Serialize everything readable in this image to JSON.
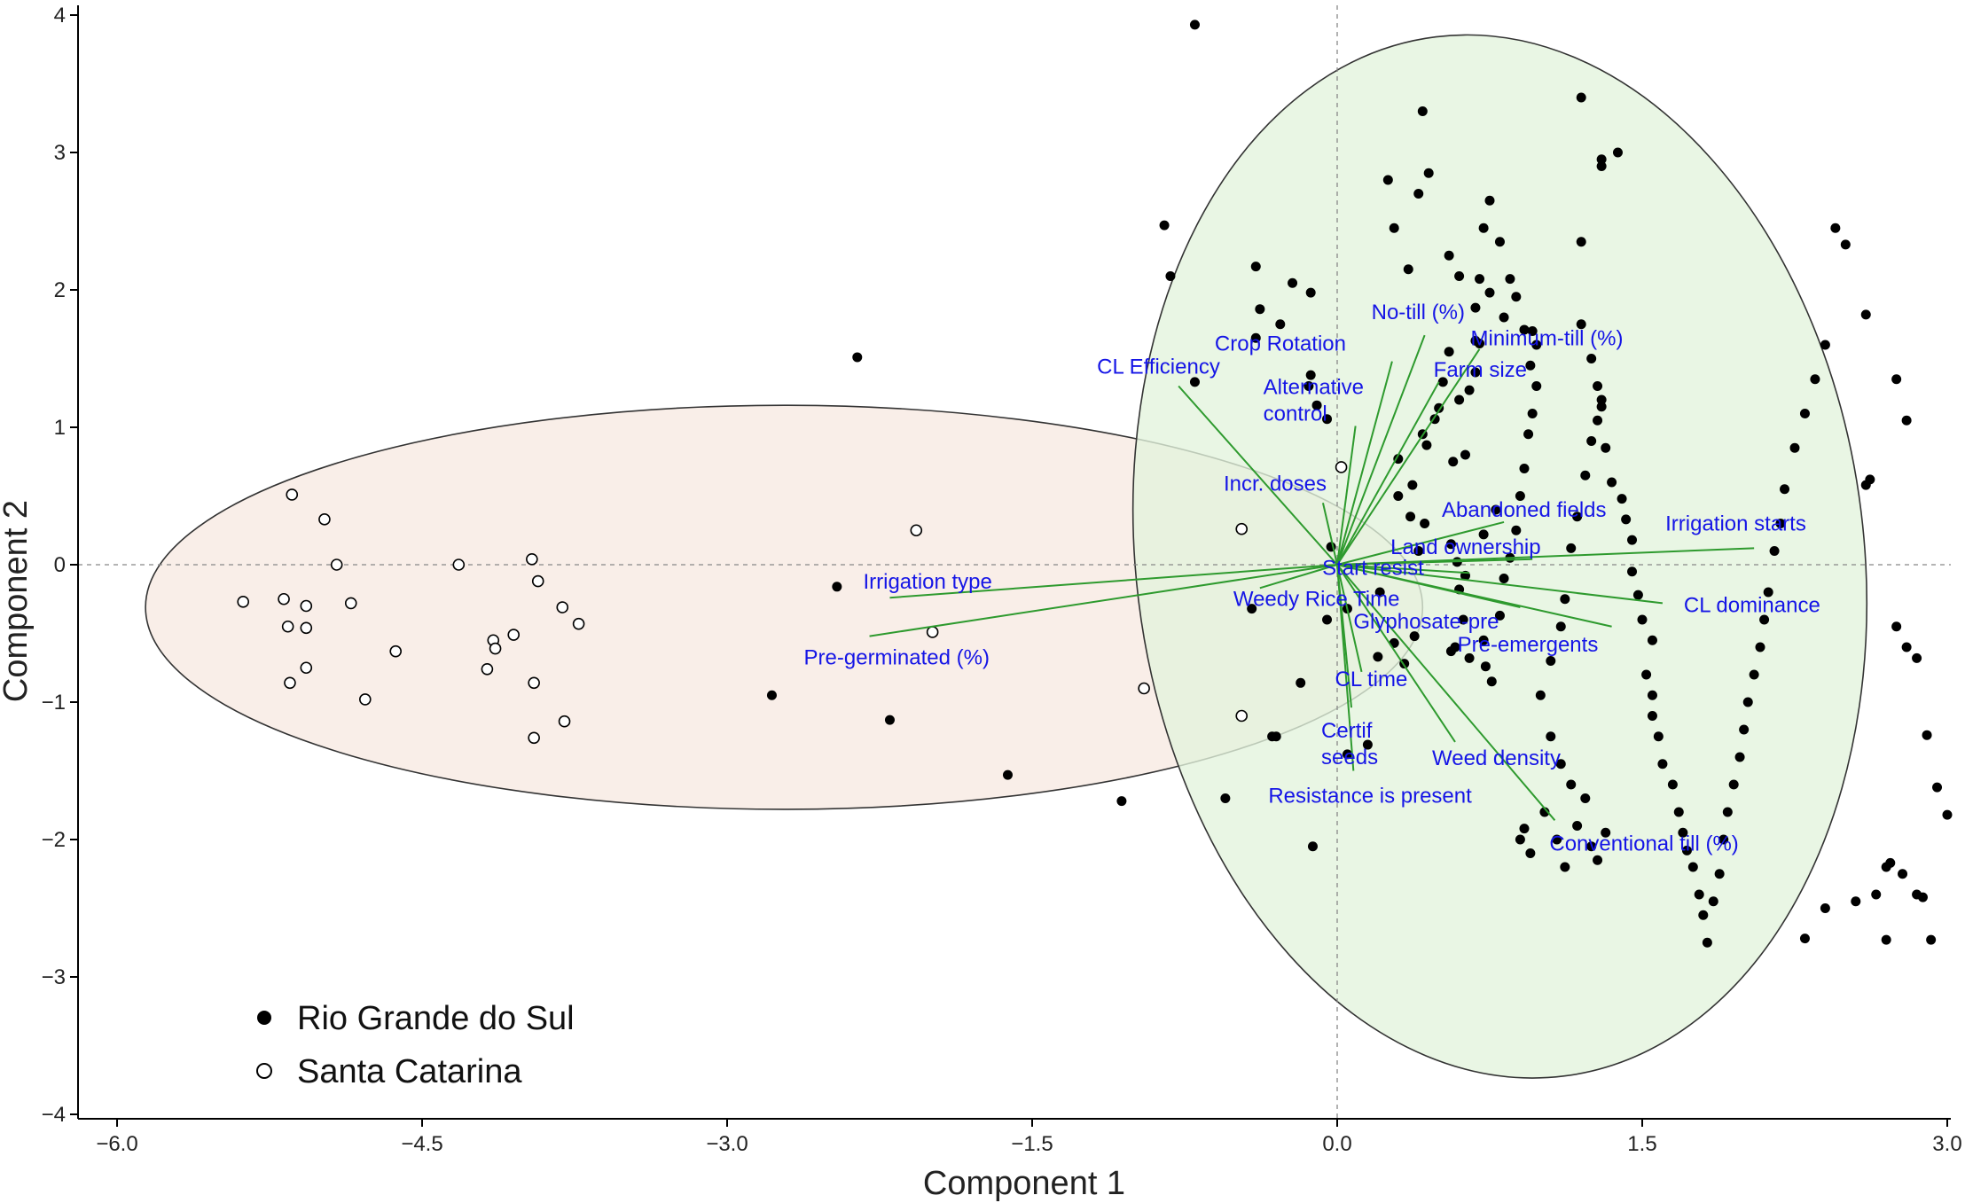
{
  "chart_data": {
    "type": "scatter",
    "title": "",
    "xlabel": "Component 1",
    "ylabel": "Component 2",
    "xlim": [
      -6.15,
      3.05
    ],
    "ylim": [
      -4.1,
      4.1
    ],
    "xticks": [
      -6.0,
      -4.5,
      -3.0,
      -1.5,
      0.0,
      1.5,
      3.0
    ],
    "xtick_labels": [
      "−6.0",
      "−4.5",
      "−3.0",
      "−1.5",
      "0.0",
      "1.5",
      "3.0"
    ],
    "yticks": [
      -4,
      -3,
      -2,
      -1,
      0,
      1,
      2,
      3,
      4
    ],
    "ytick_labels": [
      "−4",
      "−3",
      "−2",
      "−1",
      "0",
      "1",
      "2",
      "3",
      "4"
    ],
    "grid": false,
    "reference_lines": [
      {
        "axis": "x",
        "value": 0,
        "style": "dashed"
      },
      {
        "axis": "y",
        "value": 0,
        "style": "dashed"
      }
    ],
    "legend": {
      "position": "bottom-left"
    },
    "series": [
      {
        "name": "Rio Grande do Sul",
        "marker": "filled-circle",
        "color": "#000000",
        "points": [
          [
            -0.7,
            3.93
          ],
          [
            -0.85,
            2.47
          ],
          [
            -0.82,
            2.1
          ],
          [
            -0.7,
            1.33
          ],
          [
            -2.36,
            1.51
          ],
          [
            -2.46,
            -0.16
          ],
          [
            -2.78,
            -0.95
          ],
          [
            -2.2,
            -1.13
          ],
          [
            -1.62,
            -1.53
          ],
          [
            -1.06,
            -1.72
          ],
          [
            -0.55,
            -1.7
          ],
          [
            -0.32,
            -1.25
          ],
          [
            -0.12,
            -2.05
          ],
          [
            -0.42,
            -0.32
          ],
          [
            -0.3,
            -1.25
          ],
          [
            -0.18,
            -0.86
          ],
          [
            -0.4,
            2.17
          ],
          [
            -0.38,
            1.86
          ],
          [
            -0.4,
            1.65
          ],
          [
            -0.28,
            1.75
          ],
          [
            -0.22,
            2.05
          ],
          [
            -0.13,
            1.98
          ],
          [
            -0.13,
            1.38
          ],
          [
            -0.14,
            1.3
          ],
          [
            -0.1,
            1.16
          ],
          [
            -0.05,
            1.06
          ],
          [
            -0.03,
            0.13
          ],
          [
            -0.05,
            -0.4
          ],
          [
            0.05,
            -0.32
          ],
          [
            0.05,
            -1.38
          ],
          [
            0.15,
            -1.31
          ],
          [
            0.2,
            -0.67
          ],
          [
            0.21,
            -0.2
          ],
          [
            0.28,
            -0.57
          ],
          [
            0.33,
            -0.72
          ],
          [
            0.38,
            -0.52
          ],
          [
            0.4,
            0.1
          ],
          [
            0.43,
            0.3
          ],
          [
            0.36,
            0.35
          ],
          [
            0.3,
            0.77
          ],
          [
            0.3,
            0.5
          ],
          [
            0.37,
            0.58
          ],
          [
            0.42,
            0.95
          ],
          [
            0.44,
            0.87
          ],
          [
            0.48,
            1.06
          ],
          [
            0.5,
            1.14
          ],
          [
            0.52,
            1.33
          ],
          [
            0.55,
            1.55
          ],
          [
            0.57,
            0.75
          ],
          [
            0.63,
            0.8
          ],
          [
            0.6,
            1.2
          ],
          [
            0.65,
            1.27
          ],
          [
            0.68,
            1.4
          ],
          [
            0.7,
            1.61
          ],
          [
            0.56,
            0.15
          ],
          [
            0.59,
            0.02
          ],
          [
            0.63,
            -0.08
          ],
          [
            0.6,
            -0.18
          ],
          [
            0.62,
            -0.4
          ],
          [
            0.58,
            -0.6
          ],
          [
            0.56,
            -0.63
          ],
          [
            0.65,
            -0.68
          ],
          [
            0.72,
            -0.55
          ],
          [
            0.73,
            -0.74
          ],
          [
            0.76,
            -0.85
          ],
          [
            0.8,
            -0.37
          ],
          [
            0.82,
            -0.1
          ],
          [
            0.85,
            0.05
          ],
          [
            0.88,
            0.25
          ],
          [
            0.9,
            0.5
          ],
          [
            0.92,
            0.7
          ],
          [
            0.94,
            0.95
          ],
          [
            0.96,
            1.1
          ],
          [
            0.98,
            1.3
          ],
          [
            0.95,
            1.45
          ],
          [
            0.78,
            0.4
          ],
          [
            0.72,
            0.22
          ],
          [
            0.68,
            1.63
          ],
          [
            0.7,
            2.08
          ],
          [
            0.72,
            2.45
          ],
          [
            0.75,
            2.65
          ],
          [
            0.8,
            2.35
          ],
          [
            0.68,
            1.87
          ],
          [
            0.75,
            1.98
          ],
          [
            0.82,
            1.8
          ],
          [
            0.85,
            2.08
          ],
          [
            0.88,
            1.95
          ],
          [
            0.92,
            1.71
          ],
          [
            0.98,
            1.6
          ],
          [
            0.96,
            1.7
          ],
          [
            0.25,
            2.8
          ],
          [
            0.35,
            2.15
          ],
          [
            0.28,
            2.45
          ],
          [
            0.4,
            2.7
          ],
          [
            0.42,
            3.3
          ],
          [
            0.45,
            2.85
          ],
          [
            0.55,
            2.25
          ],
          [
            0.6,
            2.1
          ],
          [
            1.2,
            3.4
          ],
          [
            1.3,
            2.95
          ],
          [
            1.3,
            2.9
          ],
          [
            1.38,
            3.0
          ],
          [
            1.2,
            2.35
          ],
          [
            1.2,
            1.75
          ],
          [
            1.25,
            1.5
          ],
          [
            1.28,
            1.3
          ],
          [
            1.3,
            1.15
          ],
          [
            1.32,
            0.85
          ],
          [
            1.35,
            0.6
          ],
          [
            1.4,
            0.48
          ],
          [
            1.42,
            0.33
          ],
          [
            1.45,
            0.18
          ],
          [
            1.45,
            -0.05
          ],
          [
            1.48,
            -0.22
          ],
          [
            1.5,
            -0.4
          ],
          [
            1.55,
            -0.55
          ],
          [
            1.52,
            -0.8
          ],
          [
            1.55,
            -0.95
          ],
          [
            1.55,
            -1.1
          ],
          [
            1.58,
            -1.25
          ],
          [
            1.6,
            -1.45
          ],
          [
            1.65,
            -1.6
          ],
          [
            1.68,
            -1.8
          ],
          [
            1.7,
            -1.95
          ],
          [
            1.72,
            -2.08
          ],
          [
            1.75,
            -2.2
          ],
          [
            1.78,
            -2.4
          ],
          [
            1.8,
            -2.55
          ],
          [
            1.82,
            -2.75
          ],
          [
            1.85,
            -2.45
          ],
          [
            1.88,
            -2.25
          ],
          [
            1.9,
            -2.0
          ],
          [
            1.92,
            -1.8
          ],
          [
            1.95,
            -1.6
          ],
          [
            1.98,
            -1.4
          ],
          [
            2.0,
            -1.2
          ],
          [
            2.02,
            -1.0
          ],
          [
            2.05,
            -0.8
          ],
          [
            2.08,
            -0.6
          ],
          [
            2.1,
            -0.4
          ],
          [
            2.12,
            -0.2
          ],
          [
            2.15,
            0.1
          ],
          [
            2.18,
            0.3
          ],
          [
            2.2,
            0.55
          ],
          [
            2.25,
            0.85
          ],
          [
            2.3,
            1.1
          ],
          [
            2.35,
            1.35
          ],
          [
            2.4,
            1.6
          ],
          [
            2.45,
            2.45
          ],
          [
            2.5,
            2.33
          ],
          [
            2.6,
            0.58
          ],
          [
            2.62,
            0.62
          ],
          [
            2.75,
            -0.45
          ],
          [
            2.8,
            -0.6
          ],
          [
            2.85,
            -0.68
          ],
          [
            2.9,
            -1.24
          ],
          [
            2.95,
            -1.62
          ],
          [
            3.0,
            -1.82
          ],
          [
            2.7,
            -2.2
          ],
          [
            2.72,
            -2.17
          ],
          [
            2.78,
            -2.25
          ],
          [
            2.65,
            -2.4
          ],
          [
            2.7,
            -2.73
          ],
          [
            2.55,
            -2.45
          ],
          [
            2.4,
            -2.5
          ],
          [
            2.3,
            -2.72
          ],
          [
            2.85,
            -2.4
          ],
          [
            2.88,
            -2.42
          ],
          [
            2.92,
            -2.73
          ],
          [
            2.6,
            1.82
          ],
          [
            2.75,
            1.35
          ],
          [
            2.8,
            1.05
          ],
          [
            1.15,
            -1.6
          ],
          [
            1.1,
            -1.45
          ],
          [
            1.05,
            -1.25
          ],
          [
            1.0,
            -0.95
          ],
          [
            1.05,
            -0.7
          ],
          [
            1.1,
            -0.45
          ],
          [
            1.12,
            -0.25
          ],
          [
            1.15,
            0.12
          ],
          [
            1.18,
            0.35
          ],
          [
            1.22,
            0.65
          ],
          [
            1.25,
            0.9
          ],
          [
            1.28,
            1.05
          ],
          [
            1.3,
            1.2
          ],
          [
            1.02,
            -1.8
          ],
          [
            1.08,
            -2.0
          ],
          [
            1.12,
            -2.2
          ],
          [
            1.18,
            -1.9
          ],
          [
            1.22,
            -1.7
          ],
          [
            1.25,
            -2.05
          ],
          [
            1.28,
            -2.15
          ],
          [
            1.32,
            -1.95
          ],
          [
            0.9,
            -2.0
          ],
          [
            0.92,
            -1.92
          ],
          [
            0.95,
            -2.1
          ]
        ]
      },
      {
        "name": "Santa Catarina",
        "marker": "open-circle",
        "color": "#000000",
        "points": [
          [
            -5.38,
            -0.27
          ],
          [
            -5.14,
            0.51
          ],
          [
            -5.18,
            -0.25
          ],
          [
            -5.16,
            -0.45
          ],
          [
            -5.15,
            -0.86
          ],
          [
            -5.07,
            -0.3
          ],
          [
            -5.07,
            -0.46
          ],
          [
            -5.07,
            -0.75
          ],
          [
            -4.98,
            0.33
          ],
          [
            -4.92,
            0.0
          ],
          [
            -4.85,
            -0.28
          ],
          [
            -4.78,
            -0.98
          ],
          [
            -4.63,
            -0.63
          ],
          [
            -4.32,
            0.0
          ],
          [
            -4.18,
            -0.76
          ],
          [
            -4.15,
            -0.55
          ],
          [
            -4.14,
            -0.61
          ],
          [
            -4.05,
            -0.51
          ],
          [
            -3.96,
            0.04
          ],
          [
            -3.95,
            -0.86
          ],
          [
            -3.95,
            -1.26
          ],
          [
            -3.93,
            -0.12
          ],
          [
            -3.81,
            -0.31
          ],
          [
            -3.8,
            -1.14
          ],
          [
            -3.73,
            -0.43
          ],
          [
            -2.07,
            0.25
          ],
          [
            -1.99,
            -0.49
          ],
          [
            -0.95,
            -0.9
          ],
          [
            -0.47,
            0.26
          ],
          [
            -0.47,
            -1.1
          ],
          [
            0.02,
            0.71
          ]
        ]
      }
    ],
    "ellipses": [
      {
        "group": "Santa Catarina",
        "fill": "#f7e9e1",
        "center": [
          -2.72,
          -0.31
        ],
        "half_width": 3.14,
        "half_height": 1.47,
        "rotation_deg": 0
      },
      {
        "group": "Rio Grande do Sul",
        "fill": "#e3f4dd",
        "center": [
          0.8,
          0.06
        ],
        "half_width": 1.79,
        "half_height": 3.81,
        "rotation_deg": -7
      }
    ],
    "loadings": [
      {
        "label": "No-till (%)",
        "x": 0.43,
        "y": 1.67
      },
      {
        "label": "Crop Rotation",
        "x": 0.27,
        "y": 1.48
      },
      {
        "label": "Minimum-till (%)",
        "x": 0.7,
        "y": 1.57
      },
      {
        "label": "Farm size",
        "x": 0.5,
        "y": 1.33
      },
      {
        "label": "CL Efficiency",
        "x": -0.78,
        "y": 1.3
      },
      {
        "label": "Alternative\ncontrol",
        "x": 0.09,
        "y": 1.01
      },
      {
        "label": "Incr. doses",
        "x": -0.07,
        "y": 0.45
      },
      {
        "label": "Abandoned fields",
        "x": 0.82,
        "y": 0.31
      },
      {
        "label": "Irrigation starts",
        "x": 2.05,
        "y": 0.12
      },
      {
        "label": "Land ownership",
        "x": 0.96,
        "y": 0.04
      },
      {
        "label": "Start resist",
        "x": 0.65,
        "y": -0.06
      },
      {
        "label": "CL dominance",
        "x": 1.6,
        "y": -0.28
      },
      {
        "label": "Irrigation type",
        "x": -2.2,
        "y": -0.24
      },
      {
        "label": "Weedy Rice Time",
        "x": -0.38,
        "y": -0.17
      },
      {
        "label": "Glyphosate-pre",
        "x": 0.9,
        "y": -0.31
      },
      {
        "label": "Pre-emergents",
        "x": 1.35,
        "y": -0.45
      },
      {
        "label": "Pre-germinated (%)",
        "x": -2.3,
        "y": -0.52
      },
      {
        "label": "CL time",
        "x": 0.12,
        "y": -0.78
      },
      {
        "label": "Certif\nseeds",
        "x": 0.07,
        "y": -1.04
      },
      {
        "label": "Weed density",
        "x": 0.58,
        "y": -1.29
      },
      {
        "label": "Resistance is present",
        "x": 0.08,
        "y": -1.5
      },
      {
        "label": "Conventional till (%)",
        "x": 1.07,
        "y": -1.86
      }
    ]
  }
}
